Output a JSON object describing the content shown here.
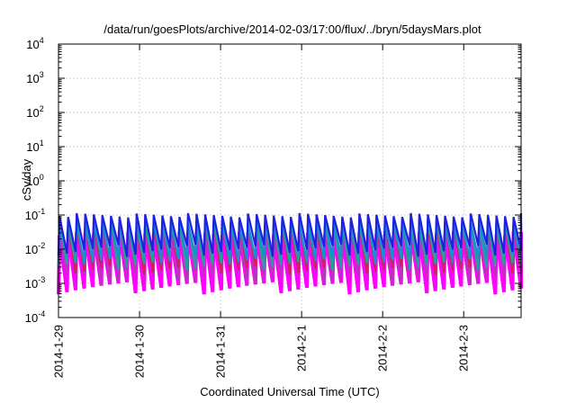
{
  "chart_data": {
    "type": "line",
    "title": "/data/run/goesPlots/archive/2014-02-03/17:00/flux/../bryn/5daysMars.plot",
    "xlabel": "Coordinated Universal Time (UTC)",
    "ylabel": "cSv/day",
    "yscale": "log",
    "ylim": [
      0.0001,
      10000
    ],
    "grid": true,
    "legend": "none",
    "xlim": [
      "2014-01-29T00:00",
      "2014-02-03T17:00"
    ],
    "x_ticks": [
      "2014-1-29",
      "2014-1-30",
      "2014-1-31",
      "2014-2-1",
      "2014-2-2",
      "2014-2-3"
    ],
    "y_ticks": [
      {
        "base": "10",
        "exp": "-4"
      },
      {
        "base": "10",
        "exp": "-3"
      },
      {
        "base": "10",
        "exp": "-2"
      },
      {
        "base": "10",
        "exp": "-1"
      },
      {
        "base": "10",
        "exp": "0"
      },
      {
        "base": "10",
        "exp": "1"
      },
      {
        "base": "10",
        "exp": "2"
      },
      {
        "base": "10",
        "exp": "3"
      },
      {
        "base": "10",
        "exp": "4"
      }
    ],
    "pattern": {
      "note_period_hours": 2.55,
      "cycles": 54
    },
    "series": [
      {
        "color": "#ff00ff",
        "peak": 0.03,
        "trough": 0.0008
      },
      {
        "color": "#c030c0",
        "peak": 0.04,
        "trough": 0.0015
      },
      {
        "color": "#d02060",
        "peak": 0.06,
        "trough": 0.003
      },
      {
        "color": "#20a0a0",
        "peak": 0.055,
        "trough": 0.004
      },
      {
        "color": "#1890d0",
        "peak": 0.07,
        "trough": 0.006
      },
      {
        "color": "#2020e0",
        "peak": 0.1,
        "trough": 0.01
      }
    ]
  }
}
